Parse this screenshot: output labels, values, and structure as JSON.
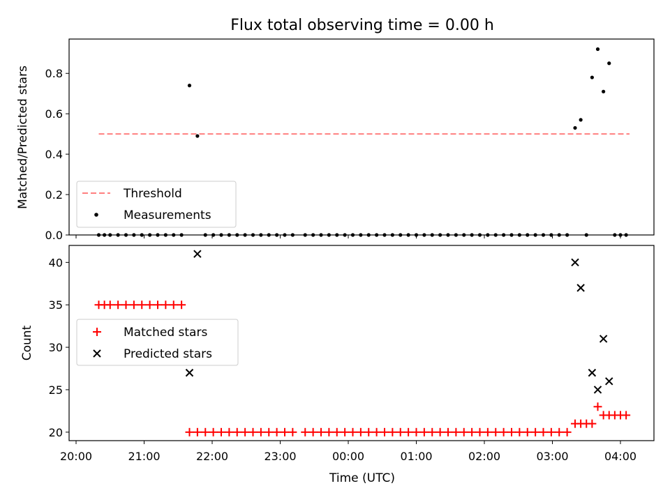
{
  "chart_data": [
    {
      "type": "scatter",
      "title": "Flux total observing time = 0.00 h",
      "xlabel": "",
      "ylabel": "Matched/Predicted stars",
      "ylim": [
        0,
        0.97
      ],
      "yticks": [
        0.0,
        0.2,
        0.4,
        0.6,
        0.8
      ],
      "ytick_labels": [
        "0.0",
        "0.2",
        "0.4",
        "0.6",
        "0.8"
      ],
      "legend": {
        "placement": "lower-left",
        "entries": [
          "Threshold",
          "Measurements"
        ]
      },
      "threshold": {
        "name": "Threshold",
        "value": 0.5,
        "x_range": [
          "20:20",
          "04:08"
        ],
        "color": "#ff7f7f",
        "style": "dashed"
      },
      "series": [
        {
          "name": "Measurements",
          "color": "#000000",
          "marker": "dot",
          "points": [
            [
              "20:20",
              0
            ],
            [
              "20:25",
              0
            ],
            [
              "20:30",
              0
            ],
            [
              "20:37",
              0
            ],
            [
              "20:44",
              0
            ],
            [
              "20:51",
              0
            ],
            [
              "20:58",
              0
            ],
            [
              "21:05",
              0
            ],
            [
              "21:12",
              0
            ],
            [
              "21:19",
              0
            ],
            [
              "21:26",
              0
            ],
            [
              "21:33",
              0
            ],
            [
              "21:40",
              0.74
            ],
            [
              "21:47",
              0.49
            ],
            [
              "21:54",
              0
            ],
            [
              "22:01",
              0
            ],
            [
              "22:08",
              0
            ],
            [
              "22:15",
              0
            ],
            [
              "22:22",
              0
            ],
            [
              "22:29",
              0
            ],
            [
              "22:36",
              0
            ],
            [
              "22:43",
              0
            ],
            [
              "22:50",
              0
            ],
            [
              "22:57",
              0
            ],
            [
              "23:04",
              0
            ],
            [
              "23:11",
              0
            ],
            [
              "23:22",
              0
            ],
            [
              "23:29",
              0
            ],
            [
              "23:36",
              0
            ],
            [
              "23:43",
              0
            ],
            [
              "23:50",
              0
            ],
            [
              "23:57",
              0
            ],
            [
              "00:04",
              0
            ],
            [
              "00:11",
              0
            ],
            [
              "00:18",
              0
            ],
            [
              "00:25",
              0
            ],
            [
              "00:32",
              0
            ],
            [
              "00:39",
              0
            ],
            [
              "00:46",
              0
            ],
            [
              "00:53",
              0
            ],
            [
              "01:00",
              0
            ],
            [
              "01:07",
              0
            ],
            [
              "01:14",
              0
            ],
            [
              "01:21",
              0
            ],
            [
              "01:28",
              0
            ],
            [
              "01:35",
              0
            ],
            [
              "01:42",
              0
            ],
            [
              "01:49",
              0
            ],
            [
              "01:56",
              0
            ],
            [
              "02:03",
              0
            ],
            [
              "02:10",
              0
            ],
            [
              "02:17",
              0
            ],
            [
              "02:24",
              0
            ],
            [
              "02:31",
              0
            ],
            [
              "02:38",
              0
            ],
            [
              "02:45",
              0
            ],
            [
              "02:52",
              0
            ],
            [
              "02:59",
              0
            ],
            [
              "03:06",
              0
            ],
            [
              "03:13",
              0
            ],
            [
              "03:20",
              0.53
            ],
            [
              "03:25",
              0.57
            ],
            [
              "03:30",
              0
            ],
            [
              "03:35",
              0.78
            ],
            [
              "03:40",
              0.92
            ],
            [
              "03:45",
              0.71
            ],
            [
              "03:50",
              0.85
            ],
            [
              "03:55",
              0
            ],
            [
              "04:00",
              0
            ],
            [
              "04:05",
              0
            ]
          ]
        }
      ]
    },
    {
      "type": "scatter",
      "title": "",
      "xlabel": "Time (UTC)",
      "ylabel": "Count",
      "ylim": [
        19,
        42
      ],
      "yticks": [
        20,
        25,
        30,
        35,
        40
      ],
      "ytick_labels": [
        "20",
        "25",
        "30",
        "35",
        "40"
      ],
      "xlim": [
        "19:55",
        "04:30"
      ],
      "xticks": [
        "20:00",
        "21:00",
        "22:00",
        "23:00",
        "00:00",
        "01:00",
        "02:00",
        "03:00",
        "04:00"
      ],
      "legend": {
        "placement": "center-left",
        "entries": [
          "Matched stars",
          "Predicted stars"
        ]
      },
      "series": [
        {
          "name": "Matched stars",
          "color": "#ff0000",
          "marker": "plus",
          "points": [
            [
              "20:20",
              35
            ],
            [
              "20:25",
              35
            ],
            [
              "20:30",
              35
            ],
            [
              "20:37",
              35
            ],
            [
              "20:44",
              35
            ],
            [
              "20:51",
              35
            ],
            [
              "20:58",
              35
            ],
            [
              "21:05",
              35
            ],
            [
              "21:12",
              35
            ],
            [
              "21:19",
              35
            ],
            [
              "21:26",
              35
            ],
            [
              "21:33",
              35
            ],
            [
              "21:40",
              20
            ],
            [
              "21:47",
              20
            ],
            [
              "21:54",
              20
            ],
            [
              "22:01",
              20
            ],
            [
              "22:08",
              20
            ],
            [
              "22:15",
              20
            ],
            [
              "22:22",
              20
            ],
            [
              "22:29",
              20
            ],
            [
              "22:36",
              20
            ],
            [
              "22:43",
              20
            ],
            [
              "22:50",
              20
            ],
            [
              "22:57",
              20
            ],
            [
              "23:04",
              20
            ],
            [
              "23:11",
              20
            ],
            [
              "23:22",
              20
            ],
            [
              "23:29",
              20
            ],
            [
              "23:36",
              20
            ],
            [
              "23:43",
              20
            ],
            [
              "23:50",
              20
            ],
            [
              "23:57",
              20
            ],
            [
              "00:04",
              20
            ],
            [
              "00:11",
              20
            ],
            [
              "00:18",
              20
            ],
            [
              "00:25",
              20
            ],
            [
              "00:32",
              20
            ],
            [
              "00:39",
              20
            ],
            [
              "00:46",
              20
            ],
            [
              "00:53",
              20
            ],
            [
              "01:00",
              20
            ],
            [
              "01:07",
              20
            ],
            [
              "01:14",
              20
            ],
            [
              "01:21",
              20
            ],
            [
              "01:28",
              20
            ],
            [
              "01:35",
              20
            ],
            [
              "01:42",
              20
            ],
            [
              "01:49",
              20
            ],
            [
              "01:56",
              20
            ],
            [
              "02:03",
              20
            ],
            [
              "02:10",
              20
            ],
            [
              "02:17",
              20
            ],
            [
              "02:24",
              20
            ],
            [
              "02:31",
              20
            ],
            [
              "02:38",
              20
            ],
            [
              "02:45",
              20
            ],
            [
              "02:52",
              20
            ],
            [
              "02:59",
              20
            ],
            [
              "03:06",
              20
            ],
            [
              "03:13",
              20
            ],
            [
              "03:20",
              21
            ],
            [
              "03:25",
              21
            ],
            [
              "03:30",
              21
            ],
            [
              "03:35",
              21
            ],
            [
              "03:40",
              23
            ],
            [
              "03:45",
              22
            ],
            [
              "03:50",
              22
            ],
            [
              "03:55",
              22
            ],
            [
              "04:00",
              22
            ],
            [
              "04:05",
              22
            ]
          ]
        },
        {
          "name": "Predicted stars",
          "color": "#000000",
          "marker": "x",
          "points": [
            [
              "21:40",
              27
            ],
            [
              "21:47",
              41
            ],
            [
              "03:20",
              40
            ],
            [
              "03:25",
              37
            ],
            [
              "03:35",
              27
            ],
            [
              "03:40",
              25
            ],
            [
              "03:45",
              31
            ],
            [
              "03:50",
              26
            ]
          ]
        }
      ]
    }
  ]
}
